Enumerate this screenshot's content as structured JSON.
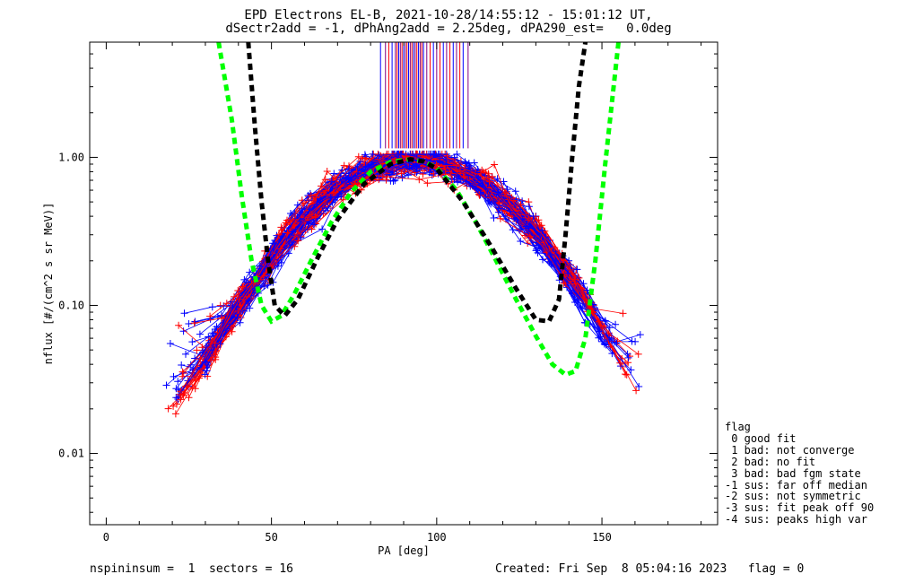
{
  "header": {
    "line1": "EPD Electrons EL-B, 2021-10-28/14:55:12 - 15:01:12 UT,",
    "line2": "dSectr2add = -1, dPhAng2add = 2.25deg, dPA290_est=   0.0deg"
  },
  "footer": {
    "left": "nspininsum =  1  sectors = 16",
    "right": "Created: Fri Sep  8 05:04:16 2023   flag = 0"
  },
  "legend": {
    "title": "flag",
    "items": [
      " 0 good fit",
      " 1 bad: not converge",
      " 2 bad: no fit",
      " 3 bad: bad fgm state",
      "-1 sus: far off median",
      "-2 sus: not symmetric",
      "-3 sus: fit peak off 90",
      "-4 sus: peaks high var"
    ]
  },
  "chart_data": {
    "type": "scatter",
    "xlabel": "PA [deg]",
    "ylabel": "nflux [#/(cm^2 s sr MeV)]",
    "xlim": [
      -5,
      185
    ],
    "ylim": [
      0.0033,
      6
    ],
    "yscale": "log",
    "xticks": [
      0,
      50,
      100,
      150
    ],
    "yticks": [
      0.01,
      0.1,
      1.0
    ],
    "ytick_labels": [
      "0.01",
      "0.10",
      "1.00"
    ],
    "colors": {
      "red": "#ff0000",
      "blue": "#0000ff",
      "green": "#00ff00",
      "black": "#000000",
      "purple": "#800080"
    },
    "fit_curves": [
      {
        "color": "#00ff00",
        "x": [
          34,
          38,
          41,
          44,
          47,
          50,
          53,
          57,
          62,
          68,
          74,
          80,
          86,
          92,
          96,
          100,
          106,
          112,
          118,
          124,
          130,
          135,
          139,
          142,
          145,
          148,
          151,
          155
        ],
        "y": [
          6,
          1.8,
          0.55,
          0.2,
          0.1,
          0.078,
          0.085,
          0.12,
          0.2,
          0.36,
          0.58,
          0.8,
          0.93,
          0.97,
          0.94,
          0.85,
          0.6,
          0.36,
          0.2,
          0.11,
          0.062,
          0.04,
          0.034,
          0.036,
          0.06,
          0.2,
          0.9,
          6
        ]
      },
      {
        "color": "#000000",
        "x": [
          43,
          45,
          47,
          49,
          51,
          54,
          58,
          64,
          70,
          78,
          86,
          92,
          96,
          100,
          108,
          116,
          124,
          130,
          134,
          137,
          139,
          141,
          143,
          145
        ],
        "y": [
          6,
          1.6,
          0.5,
          0.2,
          0.1,
          0.085,
          0.11,
          0.21,
          0.38,
          0.66,
          0.9,
          0.97,
          0.94,
          0.84,
          0.5,
          0.26,
          0.13,
          0.08,
          0.078,
          0.11,
          0.3,
          1.0,
          3.0,
          6
        ]
      }
    ],
    "vertical_line_range": [
      1.15,
      6
    ],
    "vertical_lines_pa": [
      83,
      84.5,
      85.5,
      86.5,
      87.5,
      88,
      88.5,
      89,
      89.5,
      90,
      90.5,
      91,
      91.5,
      92,
      92.5,
      93,
      93.5,
      94,
      94.5,
      95,
      95.5,
      96,
      97,
      98,
      99,
      100,
      101,
      102,
      103,
      104,
      105,
      106,
      107,
      108,
      109.5
    ]
  }
}
